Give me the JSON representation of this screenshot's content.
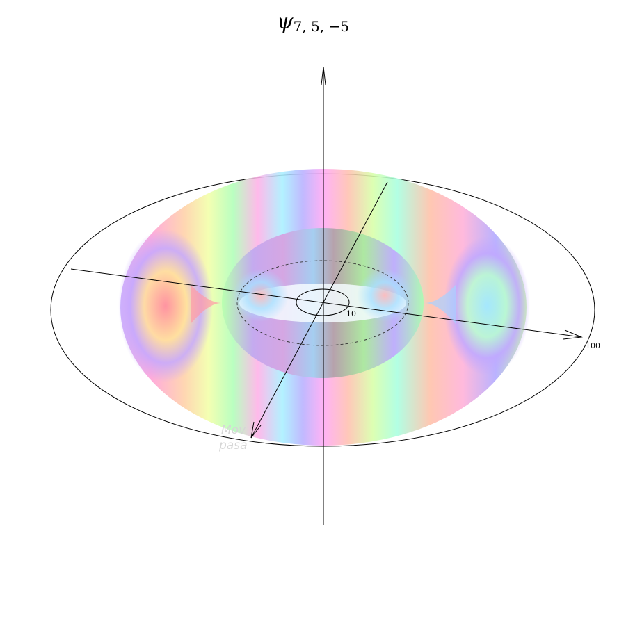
{
  "title": {
    "symbol": "ψ",
    "subscript": "7, 5, −5"
  },
  "ticks": {
    "inner": "10",
    "outer": "100"
  },
  "watermark": {
    "line1": "Mov",
    "line2": "pasa"
  },
  "colors": {
    "hue_cycle": [
      "#ff9aa6",
      "#ffc79a",
      "#fff3a0",
      "#b6ff9e",
      "#9ef7e6",
      "#a8d2ff",
      "#c8a6ff",
      "#ffa6f0"
    ],
    "axis": "#000000"
  }
}
